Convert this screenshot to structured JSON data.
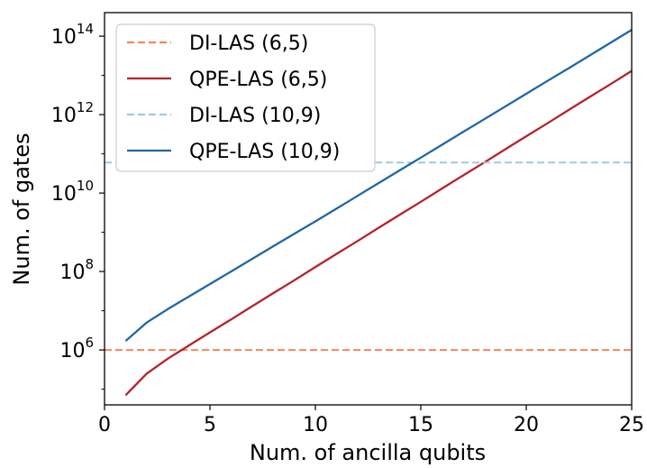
{
  "chart_data": {
    "type": "line",
    "title": "",
    "xlabel": "Num. of ancilla qubits",
    "ylabel": "Num. of gates",
    "xlim": [
      0,
      25
    ],
    "ylim_log10": [
      4.6,
      14.6
    ],
    "yscale": "log",
    "x_ticks": [
      0,
      5,
      10,
      15,
      20,
      25
    ],
    "y_ticks": [
      {
        "base": "10",
        "exp": "6",
        "value": 1000000
      },
      {
        "base": "10",
        "exp": "8",
        "value": 100000000
      },
      {
        "base": "10",
        "exp": "10",
        "value": 10000000000
      },
      {
        "base": "10",
        "exp": "12",
        "value": 1000000000000
      },
      {
        "base": "10",
        "exp": "14",
        "value": 100000000000000
      }
    ],
    "grid": false,
    "legend_position": "top-left",
    "series": [
      {
        "name": "DI-LAS (6,5)",
        "color": "#f4875a",
        "style": "dashed",
        "constant": 1000000
      },
      {
        "name": "QPE-LAS (6,5)",
        "color": "#b5232a",
        "style": "solid",
        "x": [
          1,
          2,
          3,
          4,
          5,
          6,
          7,
          8,
          9,
          10,
          11,
          12,
          13,
          14,
          15,
          16,
          17,
          18,
          19,
          20,
          21,
          22,
          23,
          24,
          25
        ],
        "y": [
          70000,
          250000,
          600000,
          1300000,
          2800000,
          6000000,
          13000000,
          28000000,
          60000000,
          130000000,
          280000000,
          600000000,
          1300000000,
          2800000000,
          6000000000,
          13000000000,
          28000000000,
          60000000000,
          130000000000,
          280000000000,
          600000000000,
          1300000000000,
          2800000000000,
          6000000000000,
          13000000000000
        ]
      },
      {
        "name": "DI-LAS (10,9)",
        "color": "#9ecae1",
        "style": "dashed",
        "constant": 60000000000
      },
      {
        "name": "QPE-LAS (10,9)",
        "color": "#2166a6",
        "style": "solid",
        "x": [
          1,
          2,
          3,
          4,
          5,
          6,
          7,
          8,
          9,
          10,
          11,
          12,
          13,
          14,
          15,
          16,
          17,
          18,
          19,
          20,
          21,
          22,
          23,
          24,
          25
        ],
        "y": [
          1700000,
          5000000,
          11000000,
          23000000,
          48000000,
          100000000,
          210000000,
          440000000,
          920000000,
          1900000000,
          4000000000,
          8500000000,
          18000000000,
          38000000000,
          80000000000,
          170000000000,
          360000000000,
          760000000000,
          1600000000000,
          3400000000000,
          7200000000000,
          15000000000000,
          32000000000000,
          68000000000000,
          145000000000000
        ]
      }
    ]
  }
}
